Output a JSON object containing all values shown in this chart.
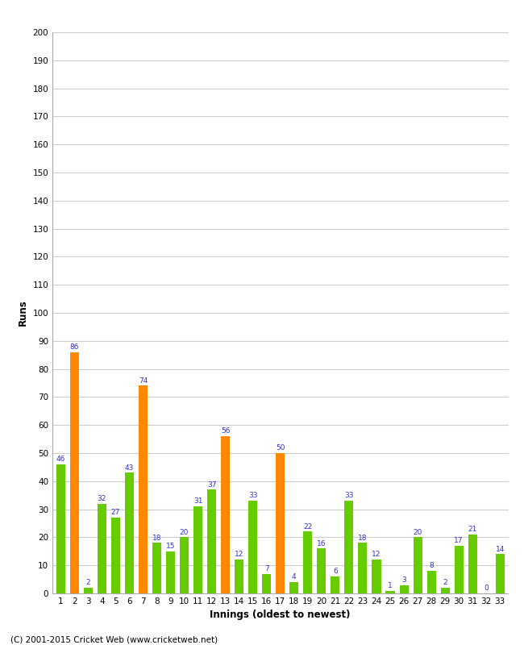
{
  "innings": [
    1,
    2,
    3,
    4,
    5,
    6,
    7,
    8,
    9,
    10,
    11,
    12,
    13,
    14,
    15,
    16,
    17,
    18,
    19,
    20,
    21,
    22,
    23,
    24,
    25,
    26,
    27,
    28,
    29,
    30,
    31,
    32,
    33
  ],
  "values": [
    46,
    86,
    2,
    32,
    27,
    43,
    74,
    18,
    15,
    20,
    31,
    37,
    56,
    12,
    33,
    7,
    50,
    4,
    22,
    16,
    6,
    33,
    18,
    12,
    1,
    3,
    20,
    8,
    2,
    17,
    21,
    0,
    14
  ],
  "colors": [
    "#66cc00",
    "#ff8800",
    "#66cc00",
    "#66cc00",
    "#66cc00",
    "#66cc00",
    "#ff8800",
    "#66cc00",
    "#66cc00",
    "#66cc00",
    "#66cc00",
    "#66cc00",
    "#ff8800",
    "#66cc00",
    "#66cc00",
    "#66cc00",
    "#ff8800",
    "#66cc00",
    "#66cc00",
    "#66cc00",
    "#66cc00",
    "#66cc00",
    "#66cc00",
    "#66cc00",
    "#66cc00",
    "#66cc00",
    "#66cc00",
    "#66cc00",
    "#66cc00",
    "#66cc00",
    "#66cc00",
    "#66cc00",
    "#66cc00"
  ],
  "xlabel": "Innings (oldest to newest)",
  "ylabel": "Runs",
  "ylim": [
    0,
    200
  ],
  "yticks": [
    0,
    10,
    20,
    30,
    40,
    50,
    60,
    70,
    80,
    90,
    100,
    110,
    120,
    130,
    140,
    150,
    160,
    170,
    180,
    190,
    200
  ],
  "label_color": "#3333cc",
  "label_fontsize": 6.5,
  "bg_color": "#ffffff",
  "grid_color": "#cccccc",
  "footer": "(C) 2001-2015 Cricket Web (www.cricketweb.net)",
  "tick_fontsize": 7.5,
  "axis_label_fontsize": 8.5,
  "bar_width": 0.65
}
